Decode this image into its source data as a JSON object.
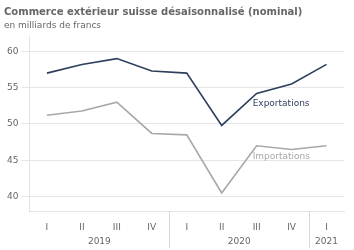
{
  "chart_data": {
    "type": "line",
    "title": "Commerce extérieur suisse désaisonnalisé (nominal)",
    "subtitle": "en milliards de francs",
    "categories": [
      "I",
      "II",
      "III",
      "IV",
      "I",
      "II",
      "III",
      "IV",
      "I"
    ],
    "x_groups": [
      {
        "label": "2019",
        "count": 4
      },
      {
        "label": "2020",
        "count": 4
      },
      {
        "label": "2021",
        "count": 1
      }
    ],
    "series": [
      {
        "name": "Exportations",
        "color": "#2e3f5c",
        "values": [
          57.0,
          58.2,
          59.0,
          57.3,
          57.0,
          49.8,
          54.2,
          55.5,
          58.2
        ]
      },
      {
        "name": "Importations",
        "color": "#a8a8a8",
        "values": [
          51.2,
          51.8,
          53.0,
          48.7,
          48.5,
          40.5,
          47.0,
          46.5,
          47.0
        ]
      }
    ],
    "ylim": [
      38,
      62
    ],
    "yticks": [
      40,
      45,
      50,
      55,
      60
    ],
    "grid": true
  }
}
